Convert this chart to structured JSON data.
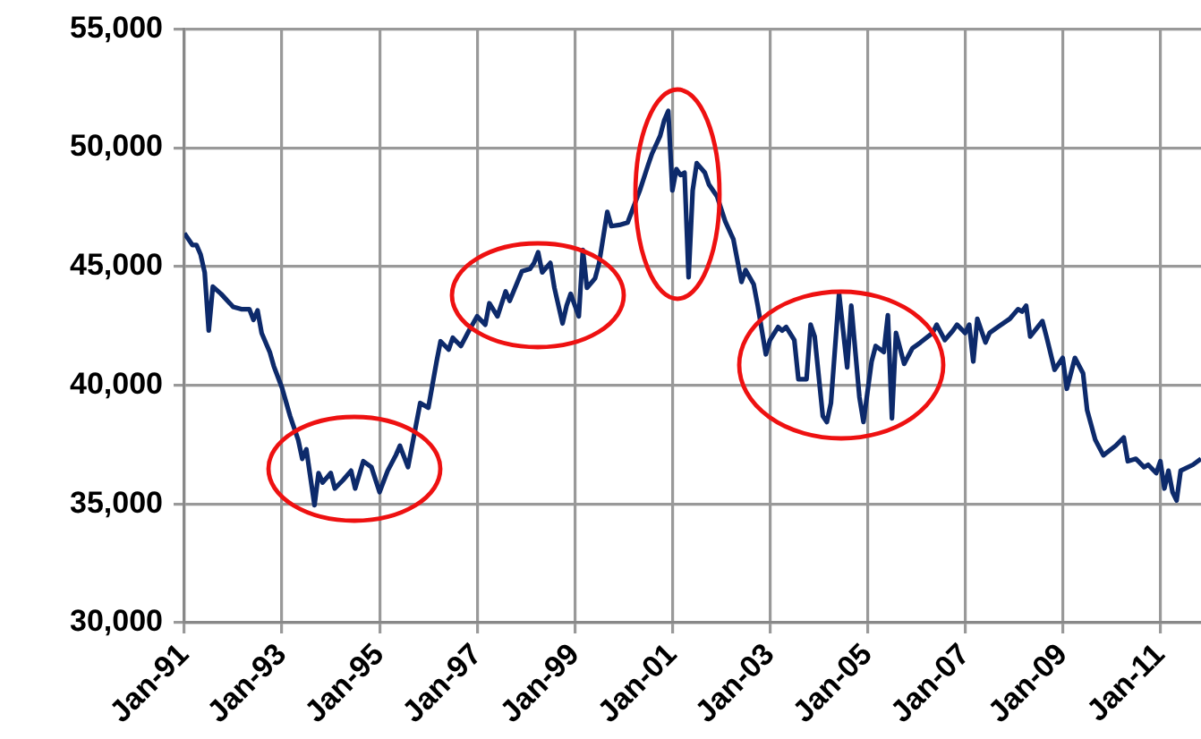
{
  "chart_data": {
    "type": "line",
    "grid": true,
    "legend": false,
    "marker": "none",
    "xlim": [
      "1991-01",
      "2011-11"
    ],
    "ylim": [
      30000,
      55000
    ],
    "yticks": [
      {
        "value": 30000,
        "label": "30,000"
      },
      {
        "value": 35000,
        "label": "35,000"
      },
      {
        "value": 40000,
        "label": "40,000"
      },
      {
        "value": 45000,
        "label": "45,000"
      },
      {
        "value": 50000,
        "label": "50,000"
      },
      {
        "value": 55000,
        "label": "55,000"
      }
    ],
    "xticks": [
      {
        "value": "1991-01",
        "label": "Jan-91"
      },
      {
        "value": "1993-01",
        "label": "Jan-93"
      },
      {
        "value": "1995-01",
        "label": "Jan-95"
      },
      {
        "value": "1997-01",
        "label": "Jan-97"
      },
      {
        "value": "1999-01",
        "label": "Jan-99"
      },
      {
        "value": "2001-01",
        "label": "Jan-01"
      },
      {
        "value": "2003-01",
        "label": "Jan-03"
      },
      {
        "value": "2005-01",
        "label": "Jan-05"
      },
      {
        "value": "2007-01",
        "label": "Jan-07"
      },
      {
        "value": "2009-01",
        "label": "Jan-09"
      },
      {
        "value": "2011-01",
        "label": "Jan-11"
      }
    ],
    "x": [
      "1991-01",
      "1991-03",
      "1991-04",
      "1991-05",
      "1991-06",
      "1991-07",
      "1991-08",
      "1991-10",
      "1992-01",
      "1992-03",
      "1992-05",
      "1992-06",
      "1992-07",
      "1992-08",
      "1992-10",
      "1992-11",
      "1993-01",
      "1993-03",
      "1993-05",
      "1993-06",
      "1993-07",
      "1993-09",
      "1993-10",
      "1993-11",
      "1994-01",
      "1994-02",
      "1994-04",
      "1994-06",
      "1994-07",
      "1994-09",
      "1994-11",
      "1995-01",
      "1995-03",
      "1995-05",
      "1995-06",
      "1995-08",
      "1995-10",
      "1995-11",
      "1996-01",
      "1996-03",
      "1996-04",
      "1996-06",
      "1996-07",
      "1996-09",
      "1996-11",
      "1997-01",
      "1997-03",
      "1997-04",
      "1997-06",
      "1997-08",
      "1997-09",
      "1997-12",
      "1998-02",
      "1998-03",
      "1998-04",
      "1998-05",
      "1998-07",
      "1998-08",
      "1998-10",
      "1998-11",
      "1998-12",
      "1999-02",
      "1999-03",
      "1999-04",
      "1999-06",
      "1999-07",
      "1999-09",
      "1999-10",
      "1999-12",
      "2000-02",
      "2000-03",
      "2000-05",
      "2000-07",
      "2000-08",
      "2000-10",
      "2000-11",
      "2000-12",
      "2001-01",
      "2001-02",
      "2001-03",
      "2001-04",
      "2001-05",
      "2001-06",
      "2001-07",
      "2001-09",
      "2001-10",
      "2001-12",
      "2002-02",
      "2002-04",
      "2002-06",
      "2002-07",
      "2002-09",
      "2002-10",
      "2002-12",
      "2003-01",
      "2003-03",
      "2003-04",
      "2003-05",
      "2003-07",
      "2003-08",
      "2003-10",
      "2003-11",
      "2003-12",
      "2004-02",
      "2004-03",
      "2004-04",
      "2004-06",
      "2004-08",
      "2004-09",
      "2004-11",
      "2004-12",
      "2005-02",
      "2005-03",
      "2005-05",
      "2005-06",
      "2005-07",
      "2005-08",
      "2005-10",
      "2005-12",
      "2006-02",
      "2006-05",
      "2006-06",
      "2006-08",
      "2006-10",
      "2006-11",
      "2007-01",
      "2007-02",
      "2007-03",
      "2007-04",
      "2007-06",
      "2007-07",
      "2007-09",
      "2007-12",
      "2008-02",
      "2008-03",
      "2008-04",
      "2008-05",
      "2008-08",
      "2008-09",
      "2008-11",
      "2009-01",
      "2009-02",
      "2009-04",
      "2009-06",
      "2009-07",
      "2009-09",
      "2009-11",
      "2010-02",
      "2010-04",
      "2010-05",
      "2010-07",
      "2010-09",
      "2010-10",
      "2010-12",
      "2011-01",
      "2011-02",
      "2011-03",
      "2011-04",
      "2011-05",
      "2011-06",
      "2011-09",
      "2011-11"
    ],
    "series": [
      {
        "color": "#0d2a6b",
        "values": [
          46400,
          45900,
          45900,
          45500,
          44750,
          42300,
          44150,
          43850,
          43300,
          43200,
          43200,
          42750,
          43150,
          42200,
          41400,
          40800,
          39900,
          38700,
          37700,
          36900,
          37300,
          34950,
          36300,
          35900,
          36300,
          35650,
          36000,
          36400,
          35650,
          36800,
          36550,
          35500,
          36400,
          37050,
          37450,
          36550,
          38350,
          39250,
          39050,
          40970,
          41850,
          41500,
          42000,
          41650,
          42300,
          42900,
          42550,
          43450,
          42900,
          43950,
          43550,
          44800,
          44900,
          45150,
          45600,
          44750,
          45150,
          44100,
          42600,
          43350,
          43850,
          42900,
          45700,
          44100,
          44500,
          45150,
          47300,
          46700,
          46750,
          46850,
          47300,
          48200,
          49250,
          49750,
          50500,
          51150,
          51550,
          48200,
          49100,
          48850,
          48950,
          44550,
          48200,
          49350,
          48950,
          48450,
          47950,
          46900,
          46150,
          44350,
          44850,
          44250,
          43350,
          41300,
          41900,
          42450,
          42300,
          42450,
          41900,
          40250,
          40250,
          42550,
          42050,
          38700,
          38450,
          39250,
          43850,
          40750,
          43350,
          39500,
          38450,
          41000,
          41650,
          41400,
          42950,
          38600,
          42200,
          40900,
          41550,
          41800,
          42200,
          42550,
          41900,
          42300,
          42550,
          42200,
          42550,
          41000,
          42800,
          41800,
          42200,
          42450,
          42800,
          43200,
          43100,
          43350,
          42050,
          42700,
          42050,
          40650,
          41150,
          39850,
          41150,
          40500,
          38950,
          37700,
          37050,
          37450,
          37800,
          36800,
          36900,
          36550,
          36650,
          36300,
          36800,
          35650,
          36400,
          35500,
          35150,
          36400,
          36650,
          36900
        ]
      }
    ]
  }
}
